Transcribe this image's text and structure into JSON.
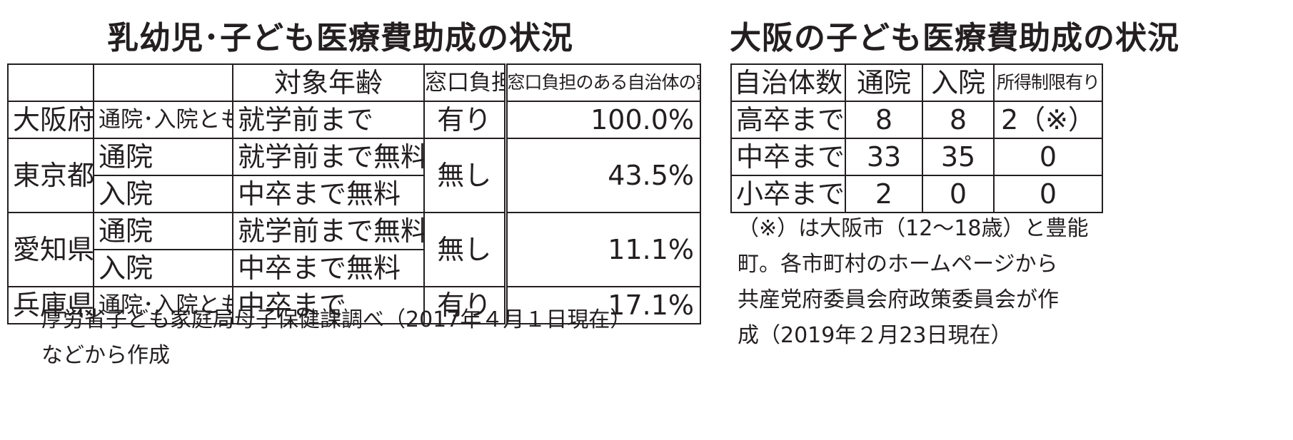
{
  "left": {
    "title": "乳幼児･子ども医療費助成の状況",
    "headers": [
      "",
      "",
      "対象年齢",
      "窓口負担",
      "窓口負担のある自治体の割合"
    ],
    "rows": [
      {
        "pref": "大阪府",
        "sub1": "通院･入院とも",
        "age1": "就学前まで",
        "burden": "有り",
        "rate": "100.0%"
      },
      {
        "pref": "東京都",
        "sub1": "通院",
        "age1": "就学前まで無料",
        "sub2": "入院",
        "age2": "中卒まで無料",
        "burden": "無し",
        "rate": "43.5%"
      },
      {
        "pref": "愛知県",
        "sub1": "通院",
        "age1": "就学前まで無料",
        "sub2": "入院",
        "age2": "中卒まで無料",
        "burden": "無し",
        "rate": "11.1%"
      },
      {
        "pref": "兵庫県",
        "sub1": "通院･入院とも",
        "age1": "中卒まで",
        "burden": "有り",
        "rate": "17.1%"
      }
    ],
    "source_line1": "厚労省子ども家庭局母子保健課調べ（2017年４月１日現在）",
    "source_line2": "などから作成"
  },
  "right": {
    "title": "大阪の子ども医療費助成の状況",
    "headers": [
      "自治体数",
      "通院",
      "入院",
      "所得制限有り"
    ],
    "rows": [
      {
        "label": "高卒まで",
        "outpatient": "8",
        "inpatient": "8",
        "income_limit": "2（※）"
      },
      {
        "label": "中卒まで",
        "outpatient": "33",
        "inpatient": "35",
        "income_limit": "0"
      },
      {
        "label": "小卒まで",
        "outpatient": "2",
        "inpatient": "0",
        "income_limit": "0"
      }
    ],
    "note_line1": "（※）は大阪市（12～18歳）と豊能",
    "note_line2": "町。各市町村のホームページから",
    "note_line3": "共産党府委員会府政策委員会が作",
    "note_line4": "成（2019年２月23日現在）"
  }
}
